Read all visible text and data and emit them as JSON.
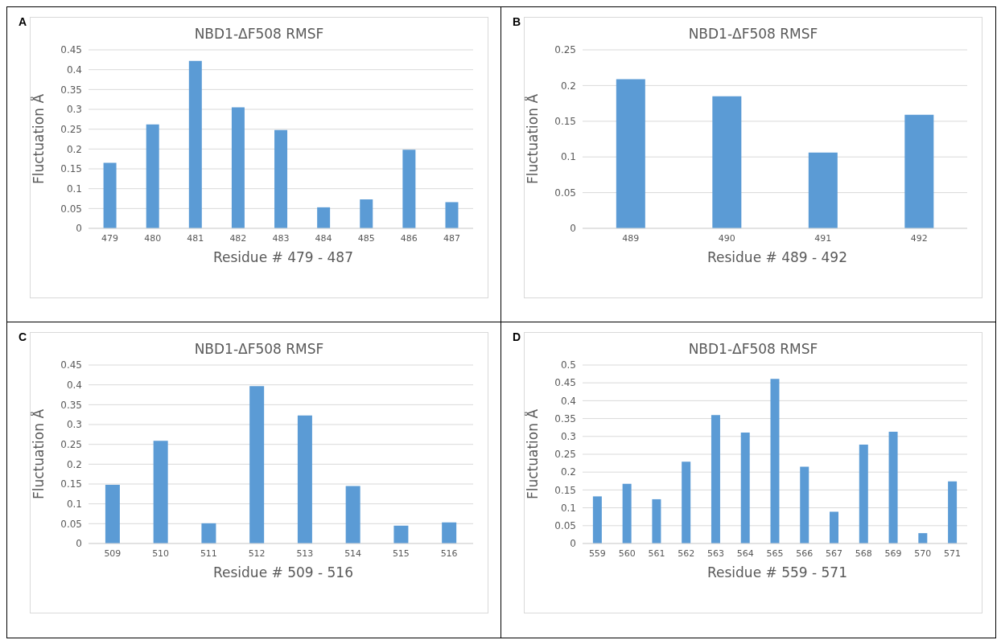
{
  "chart_data": [
    {
      "type": "bar",
      "title": "NBD1-ΔF508  RMSF",
      "xlabel": "Residue # 479 - 487",
      "ylabel": "Fluctuation Å",
      "annotations": [
        "A"
      ],
      "categories": [
        "479",
        "480",
        "481",
        "482",
        "483",
        "484",
        "485",
        "486",
        "487"
      ],
      "values": [
        0.165,
        0.262,
        0.422,
        0.305,
        0.248,
        0.053,
        0.073,
        0.198,
        0.066
      ],
      "color": "#5b9bd5",
      "ylim": [
        0,
        0.45
      ],
      "yticks": [
        0,
        0.05,
        0.1,
        0.15,
        0.2,
        0.25,
        0.3,
        0.35,
        0.4,
        0.45
      ],
      "grid": "y"
    },
    {
      "type": "bar",
      "title": "NBD1-ΔF508  RMSF",
      "xlabel": "Residue # 489 - 492",
      "ylabel": "Fluctuation Å",
      "annotations": [
        "B"
      ],
      "categories": [
        "489",
        "490",
        "491",
        "492"
      ],
      "values": [
        0.209,
        0.185,
        0.106,
        0.159
      ],
      "color": "#5b9bd5",
      "ylim": [
        0,
        0.25
      ],
      "yticks": [
        0,
        0.05,
        0.1,
        0.15,
        0.2,
        0.25
      ],
      "grid": "y"
    },
    {
      "type": "bar",
      "title": "NBD1-ΔF508  RMSF",
      "xlabel": "Residue # 509 - 516",
      "ylabel": "Fluctuation Å",
      "annotations": [
        "C"
      ],
      "categories": [
        "509",
        "510",
        "511",
        "512",
        "513",
        "514",
        "515",
        "516"
      ],
      "values": [
        0.148,
        0.259,
        0.051,
        0.397,
        0.323,
        0.145,
        0.045,
        0.053
      ],
      "color": "#5b9bd5",
      "ylim": [
        0,
        0.45
      ],
      "yticks": [
        0,
        0.05,
        0.1,
        0.15,
        0.2,
        0.25,
        0.3,
        0.35,
        0.4,
        0.45
      ],
      "grid": "y"
    },
    {
      "type": "bar",
      "title": "NBD1-ΔF508  RMSF",
      "xlabel": "Residue # 559 - 571",
      "ylabel": "Fluctuation Å",
      "annotations": [
        "D"
      ],
      "categories": [
        "559",
        "560",
        "561",
        "562",
        "563",
        "564",
        "565",
        "566",
        "567",
        "568",
        "569",
        "570",
        "571"
      ],
      "values": [
        0.132,
        0.167,
        0.124,
        0.229,
        0.36,
        0.311,
        0.461,
        0.215,
        0.089,
        0.277,
        0.313,
        0.029,
        0.174
      ],
      "color": "#5b9bd5",
      "ylim": [
        0,
        0.5
      ],
      "yticks": [
        0,
        0.05,
        0.1,
        0.15,
        0.2,
        0.25,
        0.3,
        0.35,
        0.4,
        0.45,
        0.5
      ],
      "grid": "y"
    }
  ]
}
